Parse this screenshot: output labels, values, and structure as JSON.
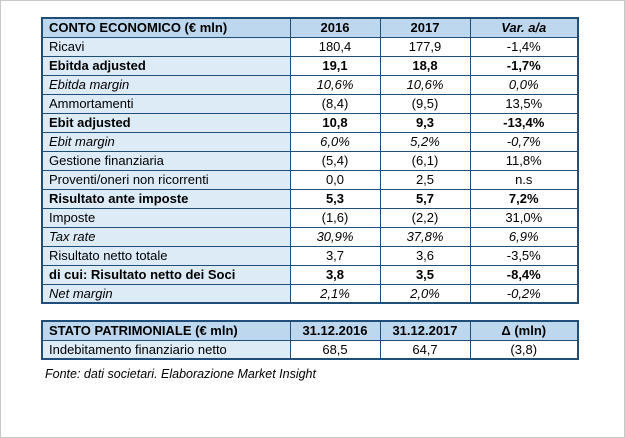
{
  "conto": {
    "header": {
      "title": "CONTO ECONOMICO (€ mln)",
      "col_2016": "2016",
      "col_2017": "2017",
      "col_var": "Var. a/a"
    },
    "rows": [
      {
        "label": "Ricavi",
        "v2016": "180,4",
        "v2017": "177,9",
        "var": "-1,4%"
      },
      {
        "label": "Ebitda adjusted",
        "v2016": "19,1",
        "v2017": "18,8",
        "var": "-1,7%"
      },
      {
        "label": "Ebitda margin",
        "v2016": "10,6%",
        "v2017": "10,6%",
        "var": "0,0%"
      },
      {
        "label": "Ammortamenti",
        "v2016": "(8,4)",
        "v2017": "(9,5)",
        "var": "13,5%"
      },
      {
        "label": "Ebit adjusted",
        "v2016": "10,8",
        "v2017": "9,3",
        "var": "-13,4%"
      },
      {
        "label": "Ebit margin",
        "v2016": "6,0%",
        "v2017": "5,2%",
        "var": "-0,7%"
      },
      {
        "label": "Gestione finanziaria",
        "v2016": "(5,4)",
        "v2017": "(6,1)",
        "var": "11,8%"
      },
      {
        "label": "Proventi/oneri non ricorrenti",
        "v2016": "0,0",
        "v2017": "2,5",
        "var": "n.s"
      },
      {
        "label": "Risultato ante imposte",
        "v2016": "5,3",
        "v2017": "5,7",
        "var": "7,2%"
      },
      {
        "label": "Imposte",
        "v2016": "(1,6)",
        "v2017": "(2,2)",
        "var": "31,0%"
      },
      {
        "label": "Tax rate",
        "v2016": "30,9%",
        "v2017": "37,8%",
        "var": "6,9%"
      },
      {
        "label": "Risultato netto totale",
        "v2016": "3,7",
        "v2017": "3,6",
        "var": "-3,5%"
      },
      {
        "label": "di cui: Risultato netto dei Soci",
        "v2016": "3,8",
        "v2017": "3,5",
        "var": "-8,4%"
      },
      {
        "label": "Net margin",
        "v2016": "2,1%",
        "v2017": "2,0%",
        "var": "-0,2%"
      }
    ]
  },
  "stato": {
    "header": {
      "title": "STATO PATRIMONIALE (€ mln)",
      "col_2016": "31.12.2016",
      "col_2017": "31.12.2017",
      "col_delta": "Δ (mln)"
    },
    "rows": [
      {
        "label": "Indebitamento finanziario netto",
        "v2016": "68,5",
        "v2017": "64,7",
        "delta": "(3,8)"
      }
    ]
  },
  "footer": {
    "source": "Fonte: dati societari. Elaborazione Market Insight"
  },
  "colors": {
    "border": "#1f4e79",
    "header_bg": "#bdd7ee",
    "label_bg": "#ddebf7"
  }
}
